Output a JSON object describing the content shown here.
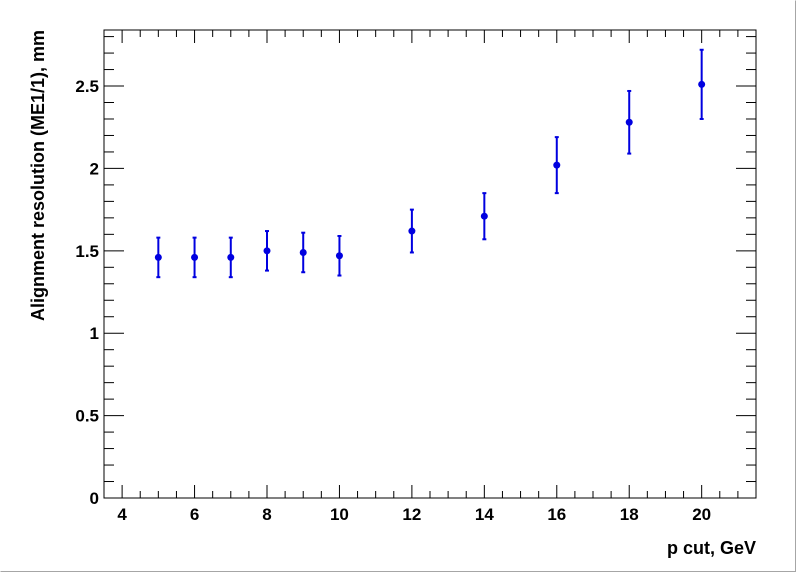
{
  "chart_data": {
    "type": "scatter",
    "title": "",
    "xlabel": "p cut, GeV",
    "ylabel": "Alignment resolution (ME1/1), mm",
    "xlim": [
      3.5,
      21.5
    ],
    "ylim": [
      0,
      2.84
    ],
    "x_ticks": [
      4,
      6,
      8,
      10,
      12,
      14,
      16,
      18,
      20
    ],
    "y_ticks": [
      0,
      0.5,
      1,
      1.5,
      2,
      2.5
    ],
    "x_tick_labels": [
      "4",
      "6",
      "8",
      "10",
      "12",
      "14",
      "16",
      "18",
      "20"
    ],
    "y_tick_labels": [
      "0",
      "0.5",
      "1",
      "1.5",
      "2",
      "2.5"
    ],
    "grid": false,
    "marker_color": "#0000e0",
    "series": [
      {
        "points": [
          {
            "x": 5,
            "y": 1.46,
            "err": 0.12
          },
          {
            "x": 6,
            "y": 1.46,
            "err": 0.12
          },
          {
            "x": 7,
            "y": 1.46,
            "err": 0.12
          },
          {
            "x": 8,
            "y": 1.5,
            "err": 0.12
          },
          {
            "x": 9,
            "y": 1.49,
            "err": 0.12
          },
          {
            "x": 10,
            "y": 1.47,
            "err": 0.12
          },
          {
            "x": 12,
            "y": 1.62,
            "err": 0.13
          },
          {
            "x": 14,
            "y": 1.71,
            "err": 0.14
          },
          {
            "x": 16,
            "y": 2.02,
            "err": 0.17
          },
          {
            "x": 18,
            "y": 2.28,
            "err": 0.19
          },
          {
            "x": 20,
            "y": 2.51,
            "err": 0.21
          }
        ]
      }
    ]
  }
}
